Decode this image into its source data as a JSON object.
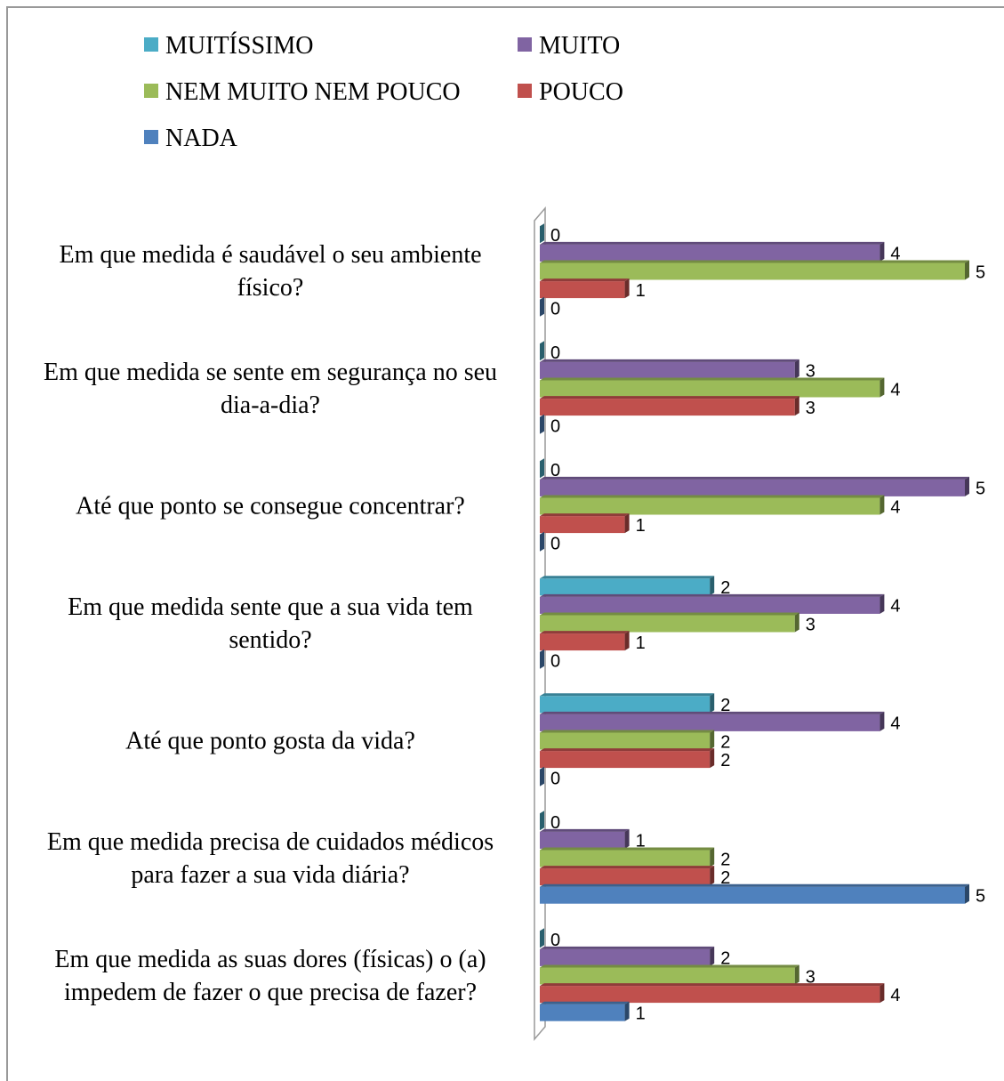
{
  "chart_data": {
    "type": "bar",
    "orientation": "horizontal",
    "categories": [
      "Em que medida é saudável o seu ambiente físico?",
      "Em que medida se sente em segurança no seu dia-a-dia?",
      "Até que ponto se consegue concentrar?",
      "Em que medida sente que a sua vida tem sentido?",
      "Até que ponto gosta da vida?",
      "Em que medida precisa de cuidados médicos para fazer a sua vida diária?",
      "Em que medida as suas dores (físicas) o (a) impedem de fazer o que precisa de fazer?"
    ],
    "series": [
      {
        "name": "MUITÍSSIMO",
        "color": "#4bacc6",
        "values": [
          0,
          0,
          0,
          2,
          2,
          0,
          0
        ]
      },
      {
        "name": "MUITO",
        "color": "#8064a2",
        "values": [
          4,
          3,
          5,
          4,
          4,
          1,
          2
        ]
      },
      {
        "name": "NEM MUITO NEM POUCO",
        "color": "#9bbb59",
        "values": [
          5,
          4,
          4,
          3,
          2,
          2,
          3
        ]
      },
      {
        "name": "POUCO",
        "color": "#c0504d",
        "values": [
          1,
          3,
          1,
          1,
          2,
          2,
          4
        ]
      },
      {
        "name": "NADA",
        "color": "#4f81bd",
        "values": [
          0,
          0,
          0,
          0,
          0,
          5,
          1
        ]
      }
    ],
    "xlim": [
      0,
      5
    ],
    "legend": "top"
  }
}
